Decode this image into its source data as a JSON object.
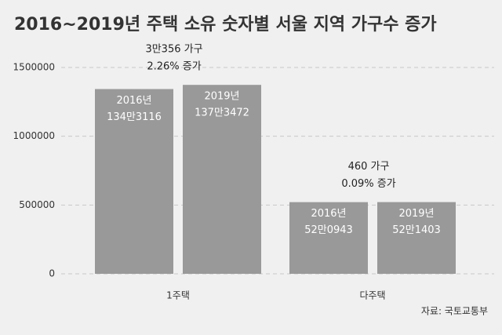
{
  "chart_data": {
    "type": "bar",
    "title": "2016~2019년 주택 소유 숫자별 서울 지역 가구수 증가",
    "categories": [
      "1주택",
      "다주택"
    ],
    "series": [
      {
        "name": "2016년",
        "color": "#999999",
        "values": [
          1343116,
          520943
        ],
        "value_labels": [
          "134만3116",
          "52만0943"
        ]
      },
      {
        "name": "2019년",
        "color": "#999999",
        "values": [
          1373472,
          521403
        ],
        "value_labels": [
          "137만3472",
          "52만1403"
        ]
      }
    ],
    "annotations": [
      [
        "3만356 가구",
        "2.26% 증가"
      ],
      [
        "460 가구",
        "0.09% 증가"
      ]
    ],
    "ylim": [
      0,
      1500000
    ],
    "yticks": [
      0,
      500000,
      1000000,
      1500000
    ],
    "grid": true,
    "source": "자료: 국토교통부"
  }
}
